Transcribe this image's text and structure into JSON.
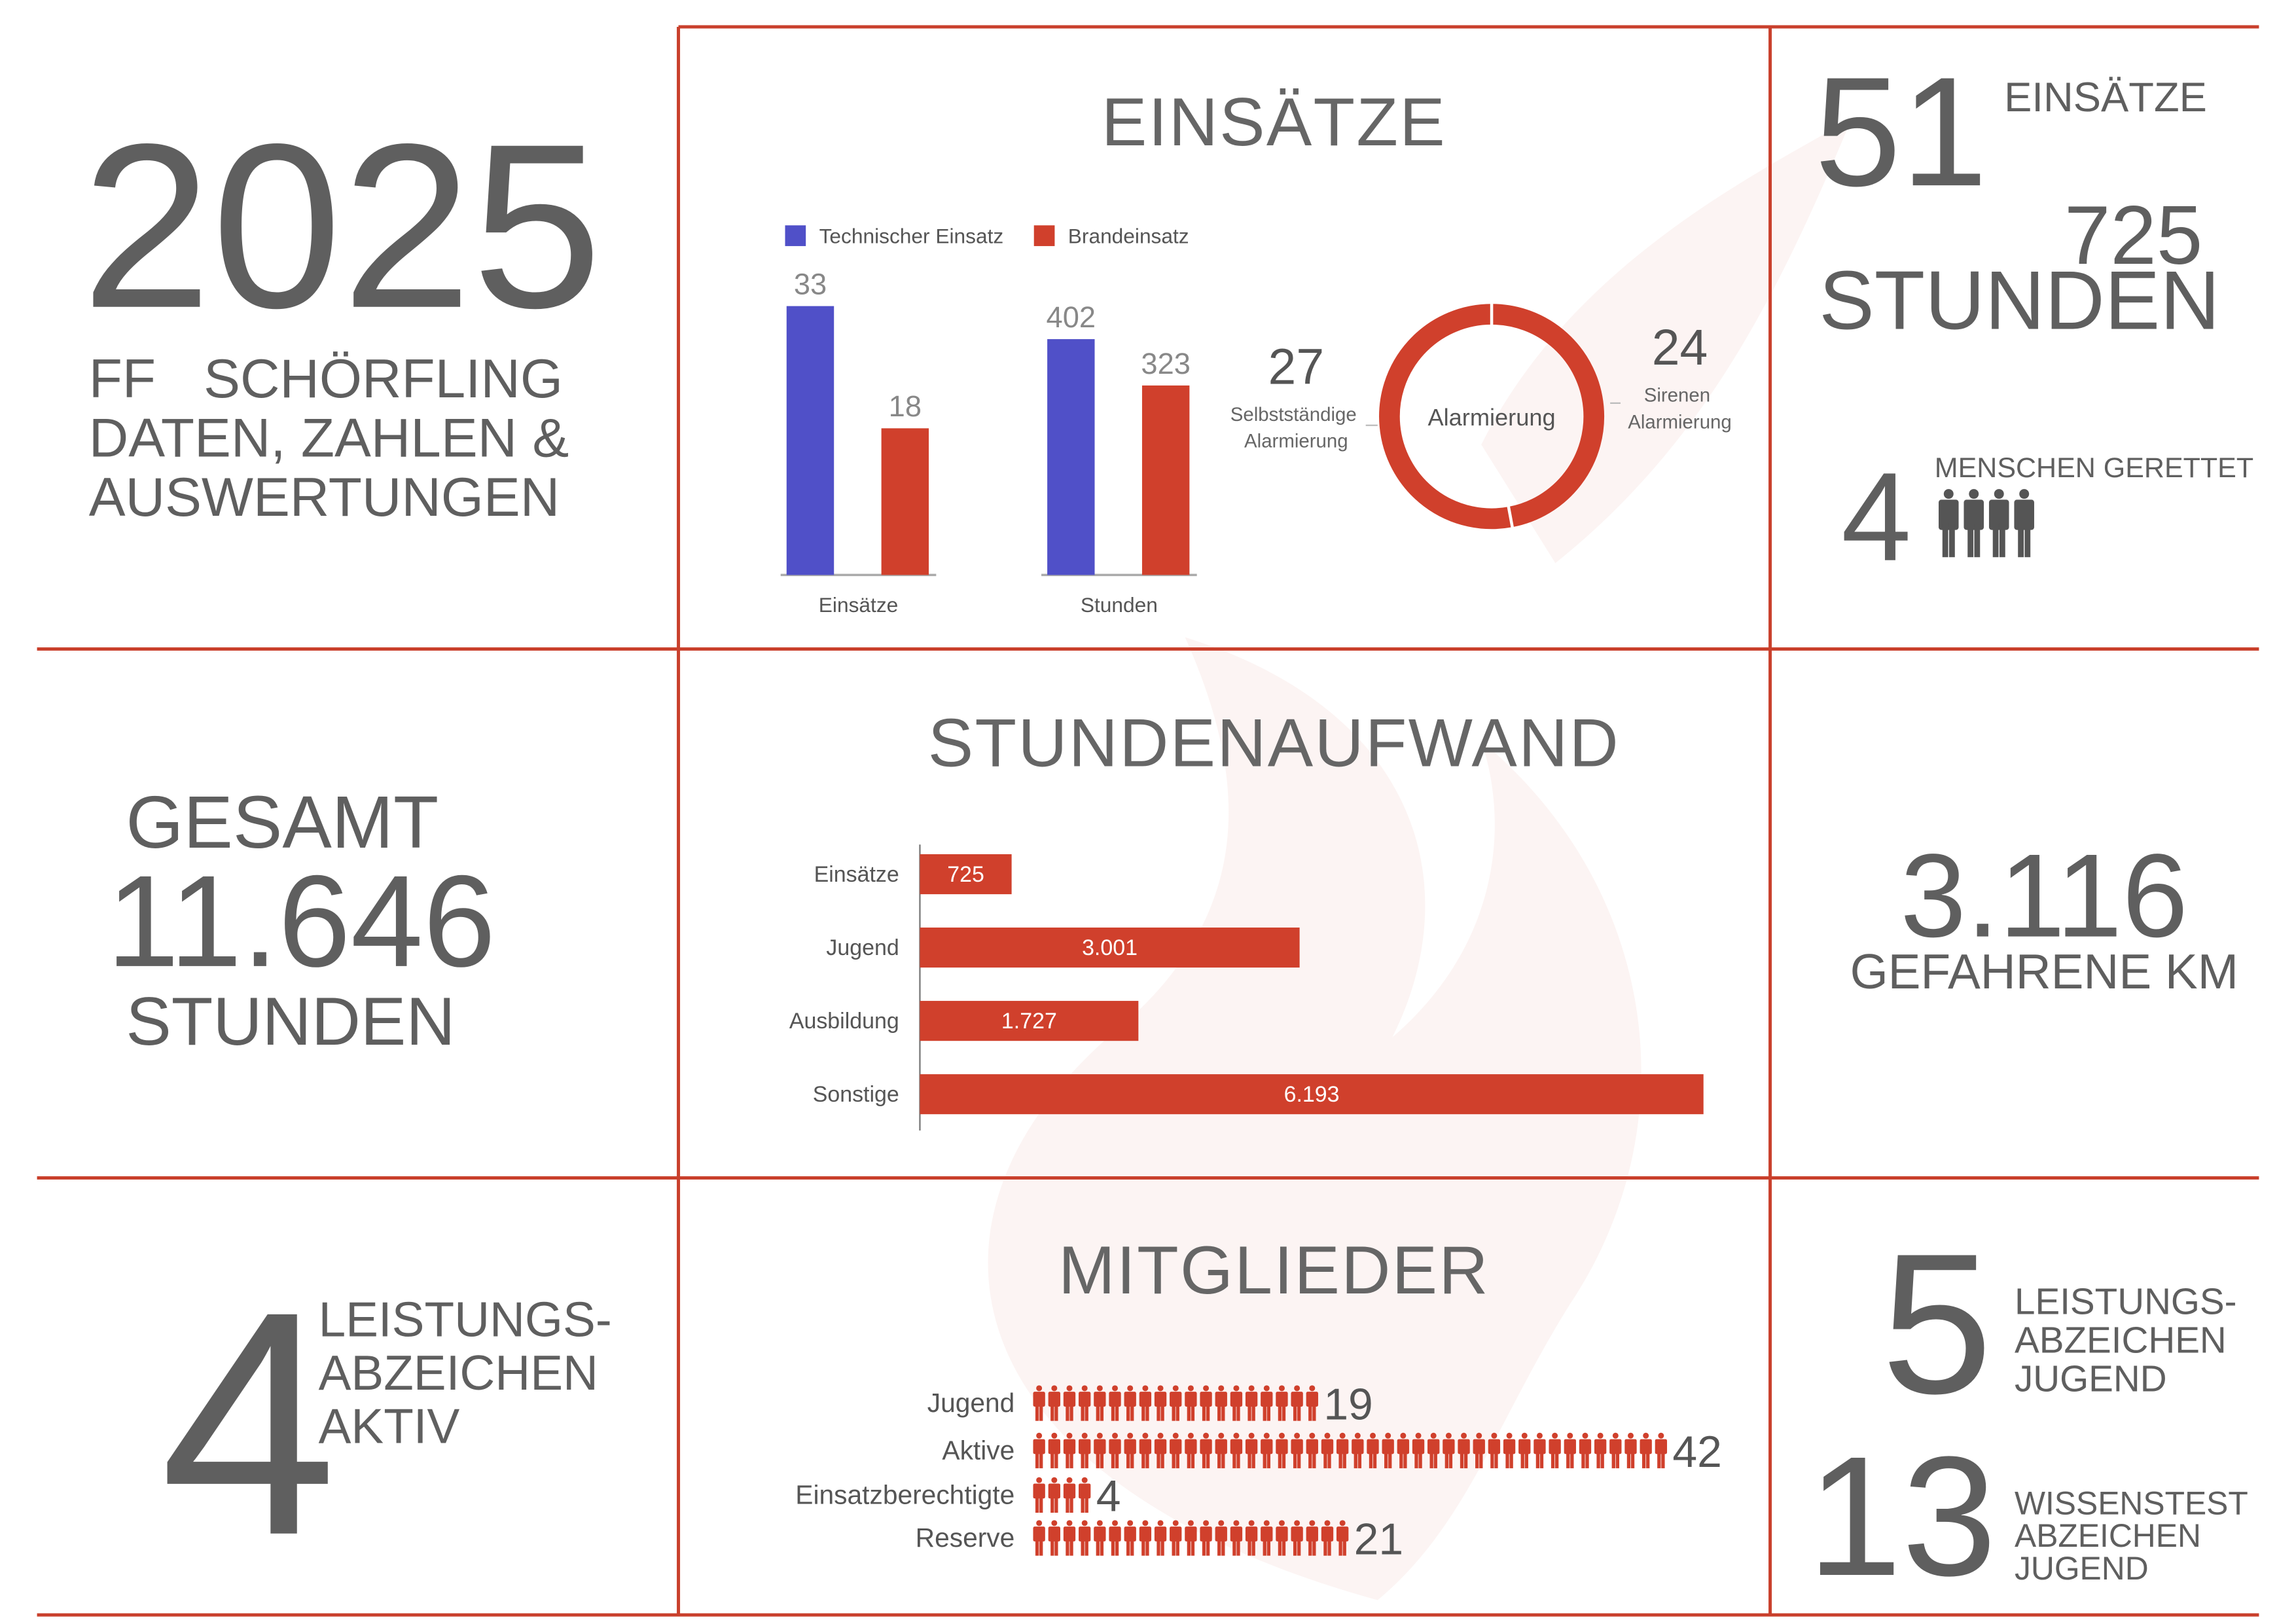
{
  "intro": {
    "year": "2025",
    "lines": [
      "FF SCHÖRFLING",
      "DATEN, ZAHLEN &",
      "AUSWERTUNGEN"
    ]
  },
  "total_hours": {
    "top": "GESAMT",
    "value": "11.646",
    "bottom": "STUNDEN"
  },
  "badges_active": {
    "value": "4",
    "lines": [
      "LEISTUNGS-",
      "ABZEICHEN",
      "AKTIV"
    ]
  },
  "chart_data": [
    {
      "type": "bar",
      "title": "EINSÄTZE",
      "categories": [
        "Einsätze",
        "Stunden"
      ],
      "series": [
        {
          "name": "Technischer Einsatz",
          "color": "#5050c8",
          "values": [
            33,
            402
          ]
        },
        {
          "name": "Brandeinsatz",
          "color": "#d0402c",
          "values": [
            18,
            323
          ]
        }
      ],
      "ylim": [
        [
          0,
          36
        ],
        [
          0,
          500
        ]
      ]
    },
    {
      "type": "donut",
      "title": "Alarmierung",
      "categories": [
        "Selbstständige Alarmierung",
        "Sirenen Alarmierung"
      ],
      "values": [
        27,
        24
      ],
      "color": "#d0402c"
    },
    {
      "type": "barh",
      "title": "STUNDENAUFWAND",
      "categories": [
        "Einsätze",
        "Jugend",
        "Ausbildung",
        "Sonstige"
      ],
      "values": [
        725,
        3001,
        1727,
        6193
      ],
      "value_labels": [
        "725",
        "3.001",
        "1.727",
        "6.193"
      ],
      "xlim": [
        0,
        6193
      ],
      "color": "#d0402c"
    },
    {
      "type": "pictograph",
      "title": "MITGLIEDER",
      "categories": [
        "Jugend",
        "Aktive",
        "Einsatzberechtigte",
        "Reserve"
      ],
      "values": [
        19,
        42,
        4,
        21
      ],
      "color": "#d0402c"
    }
  ],
  "summary": {
    "missions": {
      "value": "51",
      "label": "EINSÄTZE"
    },
    "hours": {
      "value": "725",
      "label": "STUNDEN"
    },
    "rescued": {
      "value": 4,
      "label": "MENSCHEN GERETTET"
    },
    "distance": {
      "value": "3.116",
      "label": "GEFAHRENE KM"
    },
    "youth_badges": {
      "value": "5",
      "lines": [
        "LEISTUNGS-",
        "ABZEICHEN",
        "JUGEND"
      ]
    },
    "knowledge_badges": {
      "value": "13",
      "lines": [
        "WISSENSTEST",
        "ABZEICHEN",
        "JUGEND"
      ]
    }
  }
}
